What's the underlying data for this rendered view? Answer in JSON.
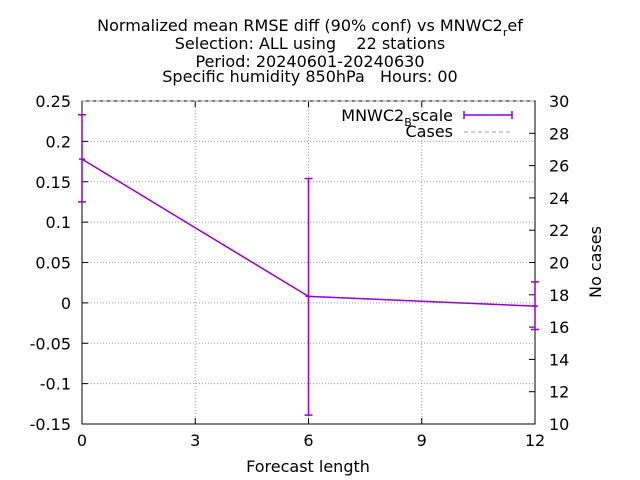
{
  "chart_data": {
    "type": "line",
    "title_lines": [
      "Normalized mean RMSE diff (90% conf) vs MNWC2_ref",
      "Selection: ALL using    22 stations",
      "Period: 20240601-20240630",
      "Specific humidity 850hPa   Hours: 00"
    ],
    "title_main": "Normalized mean RMSE diff (90% conf) vs MNWC2",
    "title_main_sub": "r",
    "title_main_tail": "ef",
    "xlabel": "Forecast length",
    "ylabel": "",
    "y2label": "No cases",
    "xlim": [
      0,
      12
    ],
    "ylim": [
      -0.15,
      0.25
    ],
    "y2lim": [
      10,
      30
    ],
    "x_ticks": [
      "0",
      "3",
      "6",
      "9",
      "12"
    ],
    "y_ticks": [
      "-0.15",
      "-0.1",
      "-0.05",
      "0",
      "0.05",
      "0.1",
      "0.15",
      "0.2",
      "0.25"
    ],
    "y2_ticks": [
      "10",
      "12",
      "14",
      "16",
      "18",
      "20",
      "22",
      "24",
      "26",
      "28",
      "30"
    ],
    "grid": true,
    "legend_position": "top-right",
    "series": [
      {
        "name": "MNWC2_Bscale",
        "name_main": "MNWC2",
        "name_sub": "B",
        "name_tail": "scale",
        "color": "#9400d3",
        "x": [
          0,
          6,
          12
        ],
        "y": [
          0.178,
          0.008,
          -0.004
        ],
        "err_low": [
          0.125,
          -0.139,
          -0.033
        ],
        "err_high": [
          0.233,
          0.154,
          0.026
        ]
      },
      {
        "name": "Cases",
        "color": "#a0a0a0",
        "axis": "y2",
        "x": [
          0,
          6,
          12
        ],
        "y": [
          30,
          30,
          30
        ]
      }
    ]
  }
}
